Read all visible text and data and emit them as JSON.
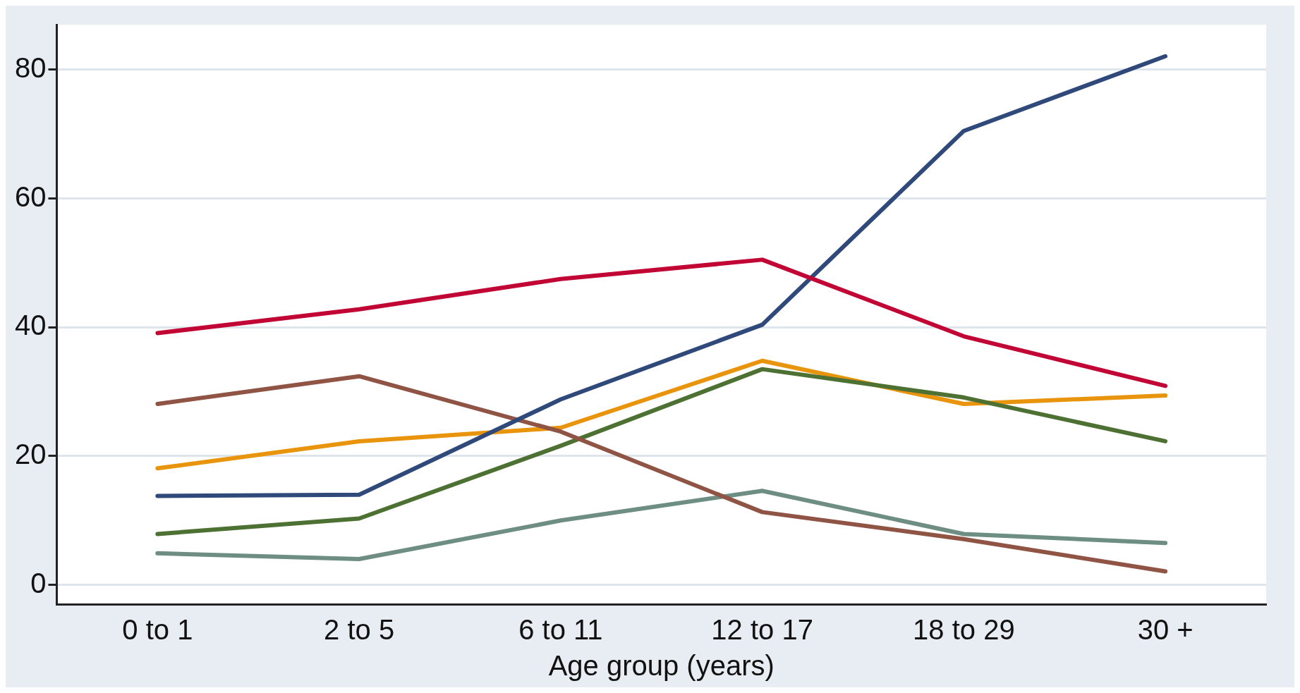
{
  "chart_data": {
    "type": "line",
    "xlabel": "Age group (years)",
    "categories": [
      "0 to 1",
      "2 to 5",
      "6 to 11",
      "12 to 17",
      "18 to 29",
      "30 +"
    ],
    "series": [
      {
        "color": "#c10534",
        "values": [
          39.1,
          42.8,
          47.5,
          50.5,
          38.6,
          30.9
        ]
      },
      {
        "color": "#2f4a7a",
        "values": [
          13.8,
          14,
          28.8,
          40.4,
          70.5,
          82.1
        ]
      },
      {
        "color": "#8f5444",
        "values": [
          28.1,
          32.4,
          23.8,
          11.3,
          7.1,
          2.1
        ]
      },
      {
        "color": "#4d7033",
        "values": [
          7.9,
          10.3,
          21.6,
          33.5,
          29.1,
          22.3
        ]
      },
      {
        "color": "#e8940c",
        "values": [
          18.1,
          22.3,
          24.4,
          34.8,
          28.1,
          29.4
        ]
      },
      {
        "color": "#6e8e84",
        "values": [
          4.9,
          4,
          10,
          14.6,
          7.9,
          6.5
        ]
      }
    ],
    "ylim": [
      -3,
      87
    ],
    "yticks": [
      0,
      20,
      40,
      60,
      80
    ],
    "grid": "y",
    "legend": false,
    "marker": "none",
    "line_style": "solid"
  }
}
